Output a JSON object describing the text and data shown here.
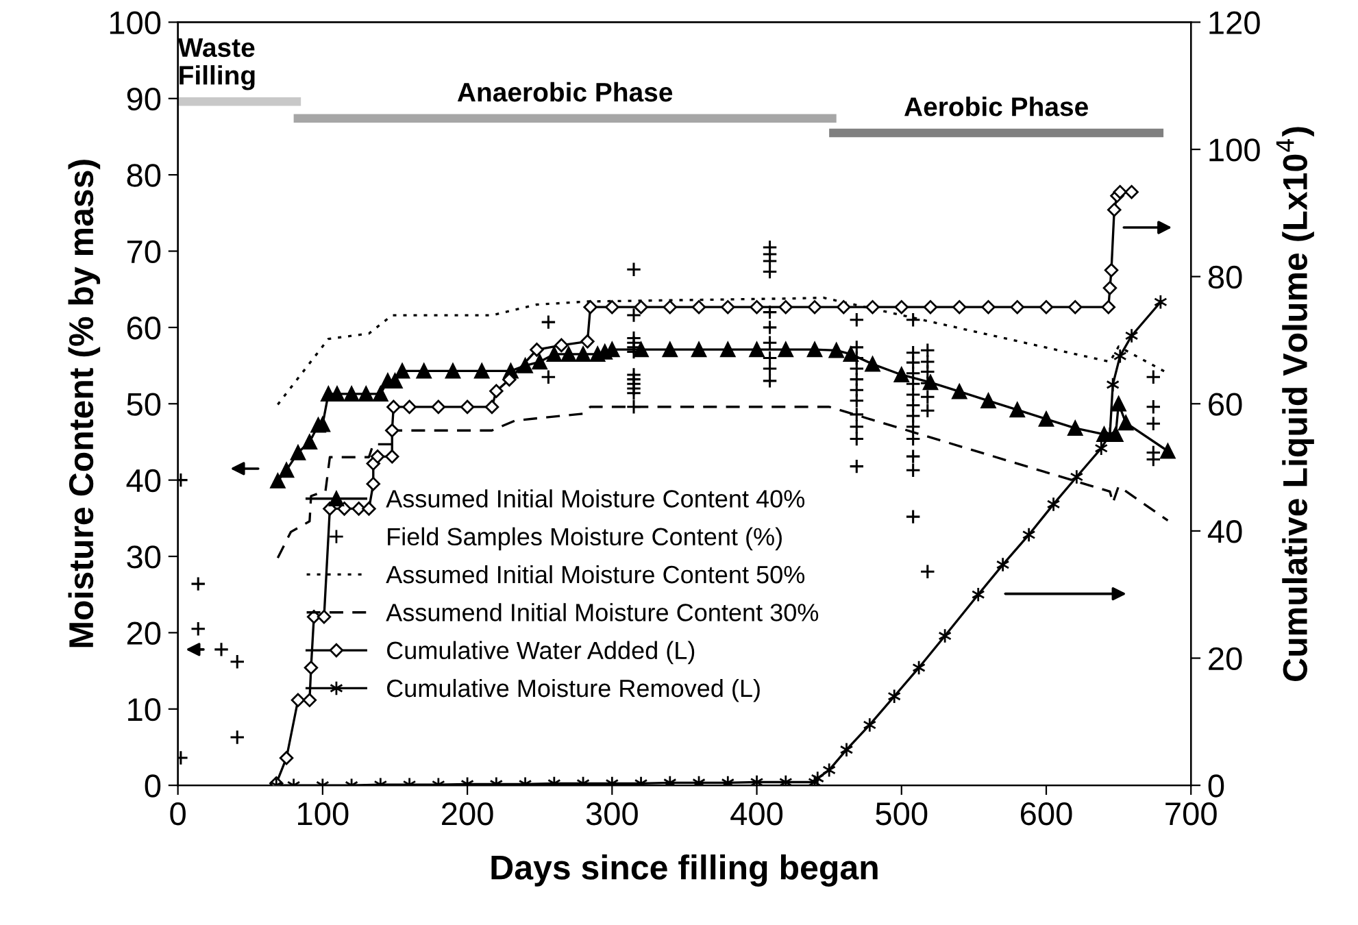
{
  "chart_data": {
    "type": "line",
    "xlabel": "Days since filling began",
    "ylabel": "Moisture Content (% by mass)",
    "y2label": "Cumulative Liquid Volume (Lx10$^{4}$)",
    "xlim": [
      0,
      700
    ],
    "xticks": [
      0,
      100,
      200,
      300,
      400,
      500,
      600,
      700
    ],
    "ylim": [
      0,
      100
    ],
    "yticks": [
      0,
      10,
      20,
      30,
      40,
      50,
      60,
      70,
      80,
      90,
      100
    ],
    "y2lim": [
      0,
      120
    ],
    "y2ticks": [
      0,
      20,
      40,
      60,
      80,
      100,
      120
    ],
    "grid": false,
    "legend": "bottom",
    "series": [
      {
        "name": "Assumed Initial Moisture Content 40%",
        "color": "#000000",
        "marker": "triangle",
        "line_style": "solid",
        "x": [
          69,
          75,
          83,
          91,
          97,
          100,
          104,
          110,
          120,
          130,
          140,
          145,
          150,
          155,
          170,
          190,
          210,
          230,
          240,
          250,
          260,
          270,
          280,
          290,
          295,
          300,
          320,
          340,
          360,
          380,
          400,
          420,
          440,
          455,
          465,
          480,
          500,
          520,
          540,
          560,
          580,
          600,
          620,
          640,
          648,
          650,
          655,
          684
        ],
        "values": [
          39.9,
          41.3,
          43.6,
          45,
          47.2,
          47.3,
          51.3,
          51.3,
          51.3,
          51.3,
          51.3,
          53,
          53,
          54.3,
          54.3,
          54.3,
          54.3,
          54.3,
          55,
          55.5,
          56.5,
          56.5,
          56.5,
          56.5,
          56.8,
          57.1,
          57.1,
          57.1,
          57.1,
          57.1,
          57.1,
          57.1,
          57.1,
          57,
          56.5,
          55.2,
          53.8,
          52.8,
          51.6,
          50.4,
          49.2,
          48,
          46.8,
          46,
          46,
          50,
          47.5,
          43.8
        ]
      },
      {
        "name": "Field Samples Moisture Content (%)",
        "type": "scatter",
        "color": "#000000",
        "marker": "cross",
        "x": [
          2,
          2,
          14,
          14,
          30,
          41,
          41,
          256,
          256,
          315,
          315,
          315,
          315,
          315,
          315,
          315,
          315,
          315,
          315,
          315,
          315,
          409,
          409,
          409,
          409,
          409,
          409,
          409,
          409,
          409,
          409,
          469,
          469,
          469,
          469,
          469,
          469,
          469,
          469,
          469,
          469,
          469,
          508,
          508,
          508,
          508,
          508,
          508,
          508,
          508,
          508,
          508,
          508,
          508,
          508,
          518,
          518,
          518,
          518,
          518,
          518,
          518,
          674,
          674,
          674,
          674,
          674
        ],
        "values": [
          40,
          3.6,
          26.4,
          20.5,
          17.8,
          16.2,
          6.3,
          60.7,
          53.5,
          67.6,
          61.6,
          58.6,
          58,
          57.4,
          56.8,
          53.8,
          53.2,
          52.6,
          52,
          51.4,
          49.6,
          70.5,
          69.6,
          68.7,
          67.3,
          62,
          60,
          58,
          56,
          54.6,
          53,
          61,
          57.4,
          56,
          54.6,
          53.2,
          51.8,
          50.4,
          48.6,
          47,
          45.4,
          41.8,
          61,
          56.7,
          55.4,
          54,
          52.6,
          51.2,
          49.8,
          48.4,
          47,
          45.4,
          43.1,
          41.3,
          35.2,
          57,
          55.5,
          54.2,
          52.7,
          50.9,
          49.1,
          28,
          53.5,
          49.6,
          47.4,
          43.6,
          42.7
        ]
      },
      {
        "name": "Assumed Initial Moisture Content 50%",
        "color": "#000000",
        "marker": "none",
        "line_style": "dotted",
        "x": [
          69,
          104,
          132,
          148,
          217,
          248,
          283,
          425,
          446,
          644,
          650,
          684
        ],
        "values": [
          49.9,
          58.5,
          59.2,
          61.6,
          61.6,
          63,
          63.4,
          63.8,
          63.9,
          55.5,
          57.5,
          54
        ]
      },
      {
        "name": "Assumend Initial Moisture Content 30%",
        "color": "#000000",
        "marker": "none",
        "line_style": "dashed",
        "x": [
          69,
          78,
          91,
          92,
          102,
          105,
          132,
          135,
          148,
          149,
          217,
          233,
          280,
          285,
          450,
          644,
          646,
          650,
          684
        ],
        "values": [
          29.8,
          33.2,
          34.6,
          37.9,
          38.6,
          43,
          43,
          44.7,
          44.7,
          46.5,
          46.5,
          47.8,
          48.7,
          49.6,
          49.6,
          38.5,
          37,
          39.2,
          34.7
        ]
      },
      {
        "name": "Cumulative Water Added (L)",
        "axis": "y2",
        "color": "#000000",
        "marker": "diamond",
        "line_style": "solid",
        "x": [
          68,
          75,
          83,
          91,
          92,
          94,
          101,
          105,
          115,
          125,
          132,
          135,
          135,
          138,
          148,
          148,
          149,
          160,
          180,
          200,
          217,
          220,
          229,
          248,
          265,
          283,
          285,
          300,
          320,
          340,
          360,
          380,
          400,
          420,
          440,
          460,
          480,
          500,
          520,
          540,
          560,
          580,
          600,
          620,
          643,
          644,
          645,
          647,
          649,
          651,
          659
        ],
        "values": [
          0.3,
          4.3,
          13.4,
          13.4,
          18.5,
          26.5,
          26.5,
          43.5,
          43.5,
          43.5,
          43.5,
          47.4,
          50.6,
          51.7,
          51.7,
          55.8,
          59.5,
          59.5,
          59.5,
          59.5,
          59.5,
          62,
          63.8,
          68.5,
          69.2,
          69.8,
          75.2,
          75.2,
          75.2,
          75.2,
          75.2,
          75.2,
          75.2,
          75.2,
          75.2,
          75.2,
          75.2,
          75.2,
          75.2,
          75.2,
          75.2,
          75.2,
          75.2,
          75.2,
          75.2,
          78.2,
          81,
          90.5,
          92.7,
          93.3,
          93.3
        ]
      },
      {
        "name": "Cumulative Moisture Removed (L)",
        "axis": "y2",
        "color": "#000000",
        "marker": "cross",
        "line_style": "solid",
        "x": [
          68,
          80,
          100,
          120,
          140,
          160,
          180,
          200,
          220,
          240,
          260,
          280,
          300,
          320,
          340,
          360,
          380,
          400,
          420,
          440,
          442,
          450,
          462,
          478,
          495,
          512,
          530,
          553,
          570,
          588,
          605,
          621,
          638,
          644,
          646,
          651,
          659,
          679
        ],
        "values": [
          0,
          0,
          0,
          0,
          0.1,
          0.1,
          0.1,
          0.2,
          0.2,
          0.2,
          0.3,
          0.3,
          0.3,
          0.3,
          0.4,
          0.4,
          0.4,
          0.5,
          0.5,
          0.5,
          1.1,
          2.4,
          5.6,
          9.5,
          14,
          18.5,
          23.5,
          30,
          34.7,
          39.4,
          44.2,
          48.5,
          53,
          55.2,
          63,
          67.5,
          70.7,
          76
        ]
      },
      {
        "name": "Waste\nFilling",
        "color": "#c8c8c8",
        "line_style": "solid",
        "x": [
          0,
          85
        ],
        "values": [
          89.6,
          89.6
        ]
      },
      {
        "name": "Anaerobic Phase",
        "color": "#a6a6a6",
        "line_style": "solid",
        "x": [
          80,
          455
        ],
        "values": [
          87.4,
          87.4
        ]
      },
      {
        "name": "Aerobic Phase",
        "color": "#808080",
        "line_style": "solid",
        "x": [
          450,
          681
        ],
        "values": [
          85.5,
          85.5
        ]
      }
    ]
  }
}
